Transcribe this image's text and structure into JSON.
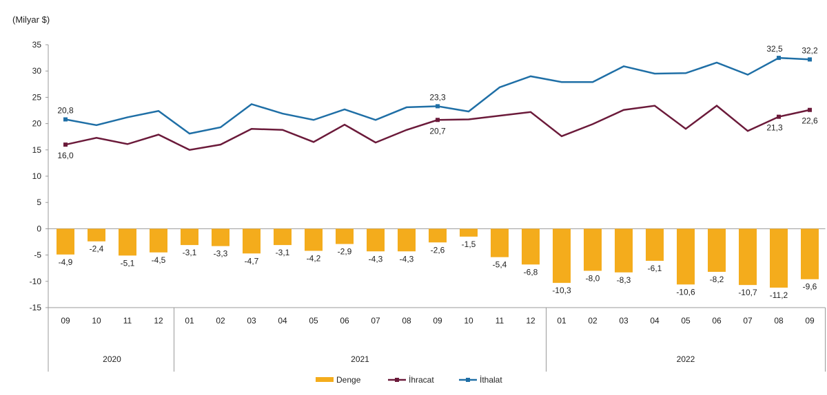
{
  "chart_data": {
    "type": "bar+line",
    "unit_label": "(Milyar $)",
    "ylim": [
      -15,
      35
    ],
    "yticks": [
      -15,
      -10,
      -5,
      0,
      5,
      10,
      15,
      20,
      25,
      30,
      35
    ],
    "grid": false,
    "legend_position": "bottom",
    "categories": [
      "09",
      "10",
      "11",
      "12",
      "01",
      "02",
      "03",
      "04",
      "05",
      "06",
      "07",
      "08",
      "09",
      "10",
      "11",
      "12",
      "01",
      "02",
      "03",
      "04",
      "05",
      "06",
      "07",
      "08",
      "09"
    ],
    "years": [
      {
        "label": "2020",
        "start": 0,
        "end": 3
      },
      {
        "label": "2021",
        "start": 4,
        "end": 15
      },
      {
        "label": "2022",
        "start": 16,
        "end": 24
      }
    ],
    "series": [
      {
        "name": "Denge",
        "type": "bar",
        "color": "#f4ac1c",
        "values": [
          -4.9,
          -2.4,
          -5.1,
          -4.5,
          -3.1,
          -3.3,
          -4.7,
          -3.1,
          -4.2,
          -2.9,
          -4.3,
          -4.3,
          -2.6,
          -1.5,
          -5.4,
          -6.8,
          -10.3,
          -8.0,
          -8.3,
          -6.1,
          -10.6,
          -8.2,
          -10.7,
          -11.2,
          -9.6
        ],
        "labels": [
          "-4,9",
          "-2,4",
          "-5,1",
          "-4,5",
          "-3,1",
          "-3,3",
          "-4,7",
          "-3,1",
          "-4,2",
          "-2,9",
          "-4,3",
          "-4,3",
          "-2,6",
          "-1,5",
          "-5,4",
          "-6,8",
          "-10,3",
          "-8,0",
          "-8,3",
          "-6,1",
          "-10,6",
          "-8,2",
          "-10,7",
          "-11,2",
          "-9,6"
        ]
      },
      {
        "name": "İhracat",
        "type": "line",
        "color": "#6b1a3a",
        "values": [
          16.0,
          17.3,
          16.1,
          17.9,
          15.0,
          16.0,
          19.0,
          18.8,
          16.5,
          19.8,
          16.4,
          18.8,
          20.7,
          20.8,
          21.5,
          22.2,
          17.6,
          19.9,
          22.6,
          23.4,
          19.0,
          23.4,
          18.6,
          21.3,
          22.6
        ],
        "marked": [
          {
            "index": 0,
            "label": "16,0"
          },
          {
            "index": 12,
            "label": "20,7"
          },
          {
            "index": 23,
            "label": "21,3"
          },
          {
            "index": 24,
            "label": "22,6"
          }
        ]
      },
      {
        "name": "İthalat",
        "type": "line",
        "color": "#1f6fa6",
        "values": [
          20.8,
          19.7,
          21.2,
          22.4,
          18.1,
          19.3,
          23.7,
          21.9,
          20.7,
          22.7,
          20.7,
          23.1,
          23.3,
          22.3,
          26.9,
          29.0,
          27.9,
          27.9,
          30.9,
          29.5,
          29.6,
          31.6,
          29.3,
          32.5,
          32.2
        ],
        "marked": [
          {
            "index": 0,
            "label": "20,8"
          },
          {
            "index": 12,
            "label": "23,3"
          },
          {
            "index": 23,
            "label": "32,5"
          },
          {
            "index": 24,
            "label": "32,2"
          }
        ]
      }
    ]
  }
}
